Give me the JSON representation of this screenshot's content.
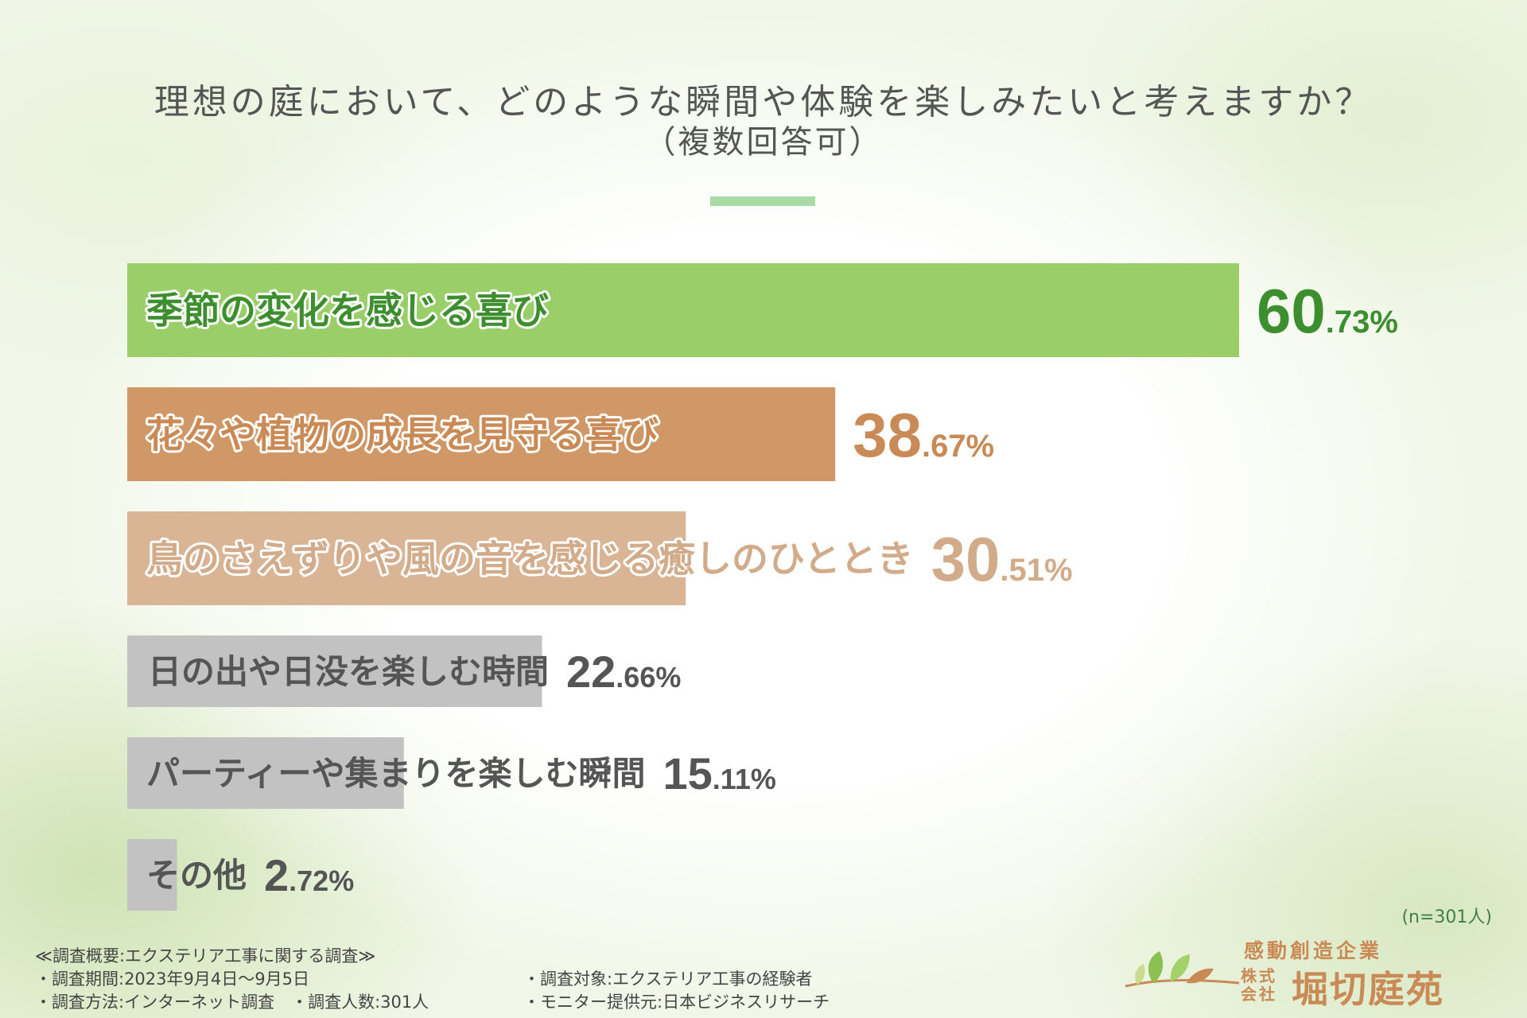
{
  "header": {
    "title": "理想の庭において、どのような瞬間や体験を楽しみたいと考えますか？",
    "subtitle": "（複数回答可）"
  },
  "colors": {
    "rule": "#a7dba3",
    "text": "#555555"
  },
  "chart_data": {
    "type": "bar",
    "orientation": "horizontal",
    "title": "理想の庭において、どのような瞬間や体験を楽しみたいと考えますか？",
    "subtitle": "（複数回答可）",
    "xlim": [
      0,
      100
    ],
    "grid": false,
    "categories": [
      "季節の変化を感じる喜び",
      "花々や植物の成長を見守る喜び",
      "鳥のさえずりや風の音を感じる癒しのひととき",
      "日の出や日没を楽しむ時間",
      "パーティーや集まりを楽しむ瞬間",
      "その他"
    ],
    "values": [
      60.73,
      38.67,
      30.51,
      22.66,
      15.11,
      2.72
    ],
    "value_int": [
      "60",
      "38",
      "30",
      "22",
      "15",
      "2"
    ],
    "value_dec": [
      ".73%",
      ".67%",
      ".51%",
      ".66%",
      ".11%",
      ".72%"
    ],
    "bar_colors": [
      "#99ce69",
      "#cf9866",
      "#d9b596",
      "#c2c2c2",
      "#c2c2c2",
      "#c2c2c2"
    ],
    "label_colors": [
      "#3c8e2e",
      "#c98a55",
      "#d2ac8a",
      "#555555",
      "#555555",
      "#555555"
    ],
    "value_colors": [
      "#3c8e2e",
      "#c98a55",
      "#d2ac8a",
      "#555555",
      "#555555",
      "#555555"
    ],
    "label_outline": [
      true,
      true,
      true,
      false,
      false,
      false
    ],
    "note": "(n=301人)"
  },
  "survey": {
    "heading": "≪調査概要:エクステリア工事に関する調査≫",
    "period": "・調査期間:2023年9月4日〜9月5日",
    "method": "・調査方法:インターネット調査　・調査人数:301人",
    "target": "・調査対象:エクステリア工事の経験者",
    "provider": "・モニター提供元:日本ビジネスリサーチ"
  },
  "logo": {
    "tagline": "感動創造企業",
    "corp": "株式会社",
    "name": "堀切庭苑"
  }
}
